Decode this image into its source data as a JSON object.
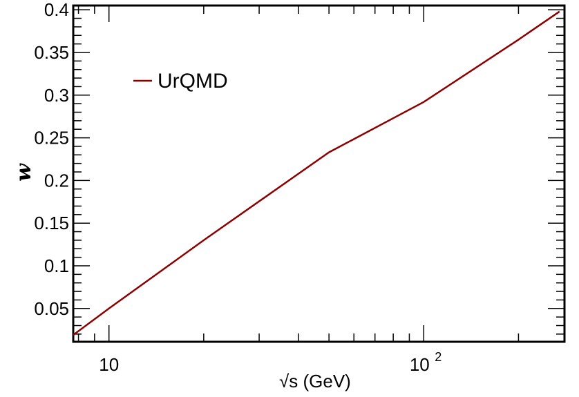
{
  "chart_data": {
    "type": "line",
    "title": "",
    "xlabel": "√s (GeV)",
    "ylabel": "w",
    "xscale": "log",
    "xlim": [
      7.7,
      280
    ],
    "ylim": [
      0.011,
      0.405
    ],
    "x_ticks": [
      {
        "value": 10,
        "label": "10",
        "exp": ""
      },
      {
        "value": 100,
        "label": "10",
        "exp": "2"
      }
    ],
    "y_ticks": [
      {
        "value": 0.05,
        "label": "0.05"
      },
      {
        "value": 0.1,
        "label": "0.1"
      },
      {
        "value": 0.15,
        "label": "0.15"
      },
      {
        "value": 0.2,
        "label": "0.2"
      },
      {
        "value": 0.25,
        "label": "0.25"
      },
      {
        "value": 0.3,
        "label": "0.3"
      },
      {
        "value": 0.35,
        "label": "0.35"
      },
      {
        "value": 0.4,
        "label": "0.4"
      }
    ],
    "grid": false,
    "legend_position": "top-left",
    "series": [
      {
        "name": "UrQMD",
        "color": "#8b0000",
        "x": [
          7.7,
          10,
          20,
          50,
          100,
          200,
          270
        ],
        "y": [
          0.019,
          0.05,
          0.13,
          0.233,
          0.292,
          0.365,
          0.398
        ]
      }
    ]
  }
}
